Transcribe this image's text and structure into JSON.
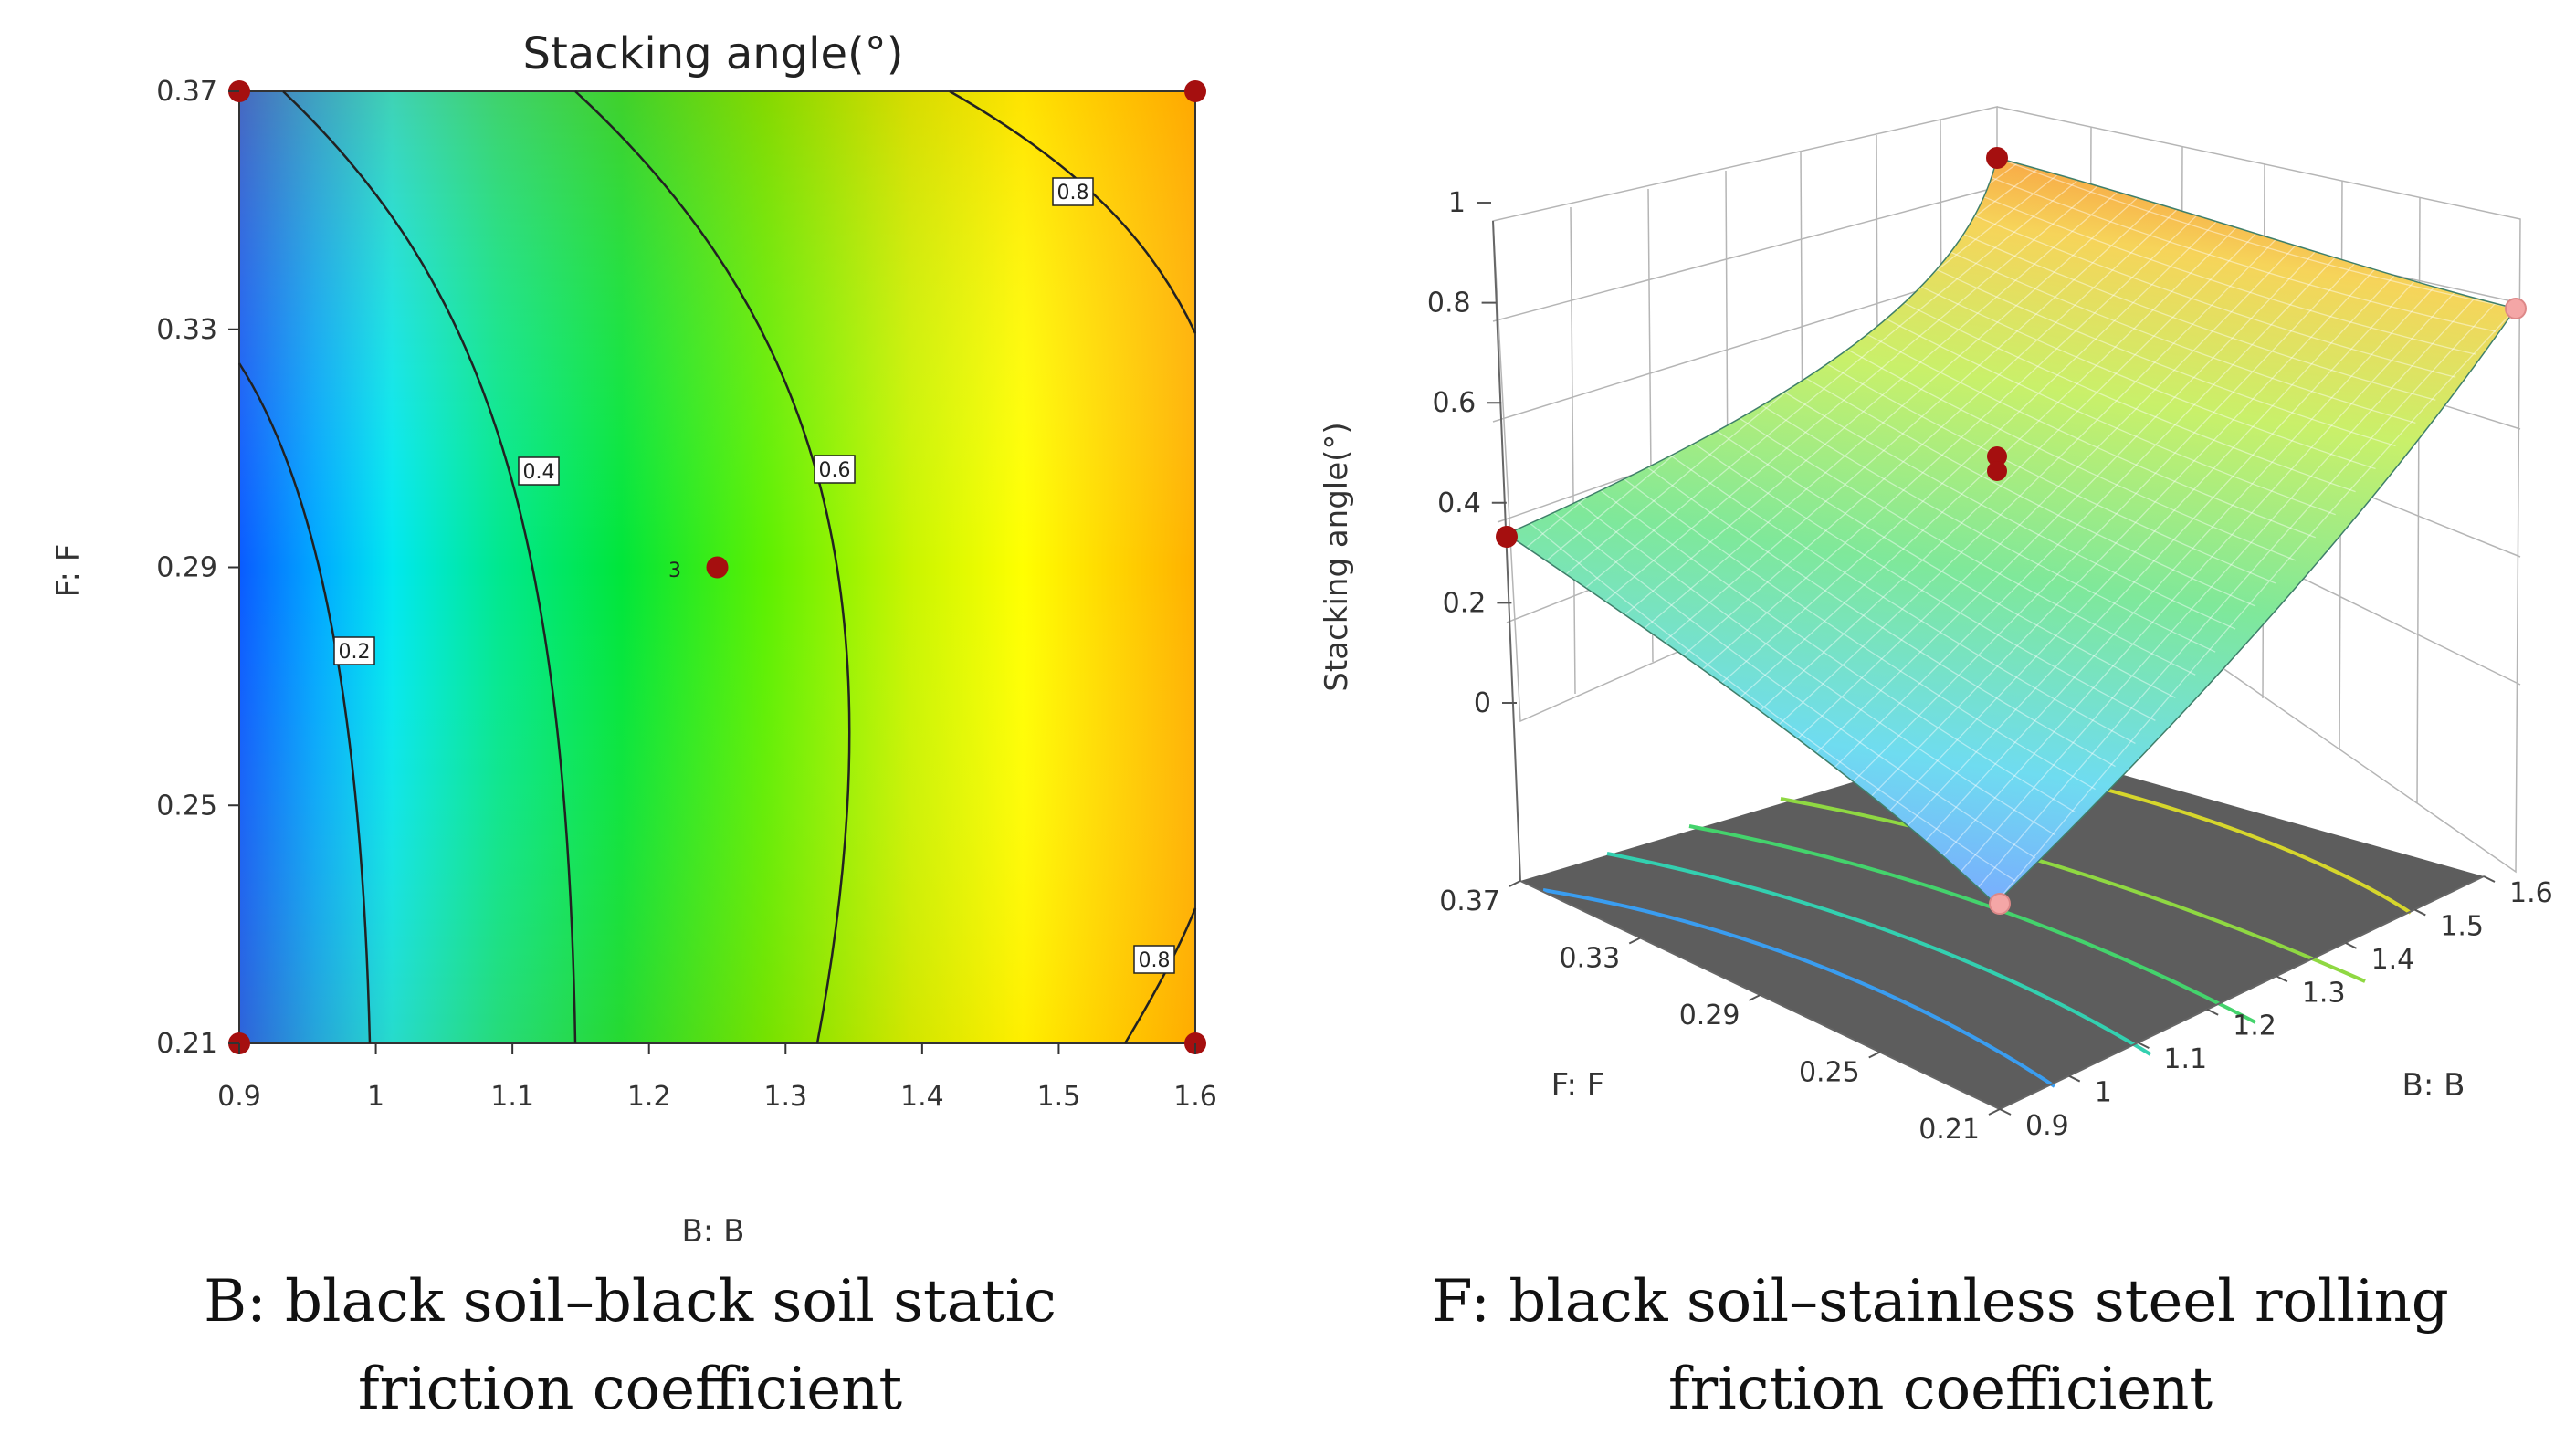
{
  "chart_data": [
    {
      "type": "contour",
      "title": "Stacking angle(°)",
      "xlabel": "B: B",
      "ylabel": "F: F",
      "xlim": [
        0.9,
        1.6
      ],
      "ylim": [
        0.21,
        0.37
      ],
      "xticks": [
        "0.9",
        "1",
        "1.1",
        "1.2",
        "1.3",
        "1.4",
        "1.5",
        "1.6"
      ],
      "yticks": [
        "0.21",
        "0.25",
        "0.29",
        "0.33",
        "0.37"
      ],
      "contours": [
        {
          "level": "0.2",
          "label": "0.2"
        },
        {
          "level": "0.4",
          "label": "0.4"
        },
        {
          "level": "0.6",
          "label": "0.6"
        },
        {
          "level": "0.8",
          "label": "0.8"
        },
        {
          "level": "0.8",
          "label": "0.8"
        }
      ],
      "center_point": {
        "x": 1.25,
        "y": 0.29,
        "label": "3"
      },
      "design_points": [
        {
          "x": 0.9,
          "y": 0.37
        },
        {
          "x": 1.6,
          "y": 0.37
        },
        {
          "x": 0.9,
          "y": 0.21
        },
        {
          "x": 1.6,
          "y": 0.21
        }
      ]
    },
    {
      "type": "surface3d",
      "zlabel": "Stacking angle(°)",
      "xlabel": "B: B",
      "ylabel": "F: F",
      "zticks": [
        "0",
        "0.2",
        "0.4",
        "0.6",
        "0.8",
        "1"
      ],
      "xticks": [
        "0.9",
        "1",
        "1.1",
        "1.2",
        "1.3",
        "1.4",
        "1.5",
        "1.6"
      ],
      "yticks": [
        "0.21",
        "0.25",
        "0.29",
        "0.33",
        "0.37"
      ],
      "zlim": [
        0,
        1
      ]
    }
  ],
  "captions": {
    "left": [
      "B: black soil–black soil static",
      "friction coefficient"
    ],
    "right": [
      "F: black soil–stainless steel rolling",
      "friction coefficient"
    ]
  },
  "colors": {
    "marker": "#a50f0f",
    "marker_light": "#f4a6a6",
    "floor": "#6b6b6b"
  }
}
